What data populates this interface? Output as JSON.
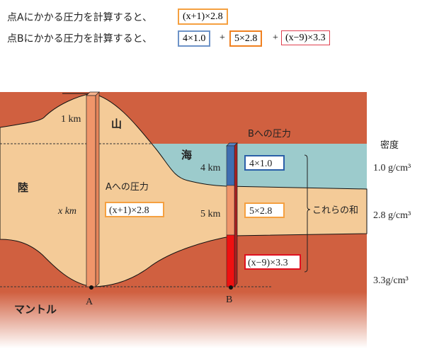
{
  "header": {
    "line_a": "点Aにかかる圧力を計算すると、",
    "line_b": "点Bにかかる圧力を計算すると、",
    "formula_a": "(x+1)×2.8",
    "formula_b_terms": [
      "4×1.0",
      "5×2.8",
      "(x−9)×3.3"
    ],
    "plus": "+"
  },
  "diagram": {
    "mountain": "山",
    "land": "陸",
    "sea": "海",
    "mantle": "マントル",
    "mountain_height": "1 km",
    "crust_depth": "x km",
    "sea_depth": "4 km",
    "crust_b_depth": "5 km",
    "pressure_a_label": "Aへの圧力",
    "pressure_a_formula": "(x+1)×2.8",
    "pressure_b_label": "Bへの圧力",
    "pressure_b_terms": [
      "4×1.0",
      "5×2.8",
      "(x−9)×3.3"
    ],
    "sum_label": "これらの和",
    "point_a": "A",
    "point_b": "B",
    "density_header": "密度",
    "densities": [
      "1.0 g/cm³",
      "2.8 g/cm³",
      "3.3g/cm³"
    ]
  },
  "colors": {
    "sea": "#9ccbcc",
    "crust": "#f4cb98",
    "mantle": "#d06040",
    "column_orange": "#f0956a",
    "column_blue": "#3f6db0",
    "column_red": "#ee1111",
    "box_orange": "#f5a040",
    "box_blue": "#3a6fb8",
    "box_red": "#e02030"
  }
}
